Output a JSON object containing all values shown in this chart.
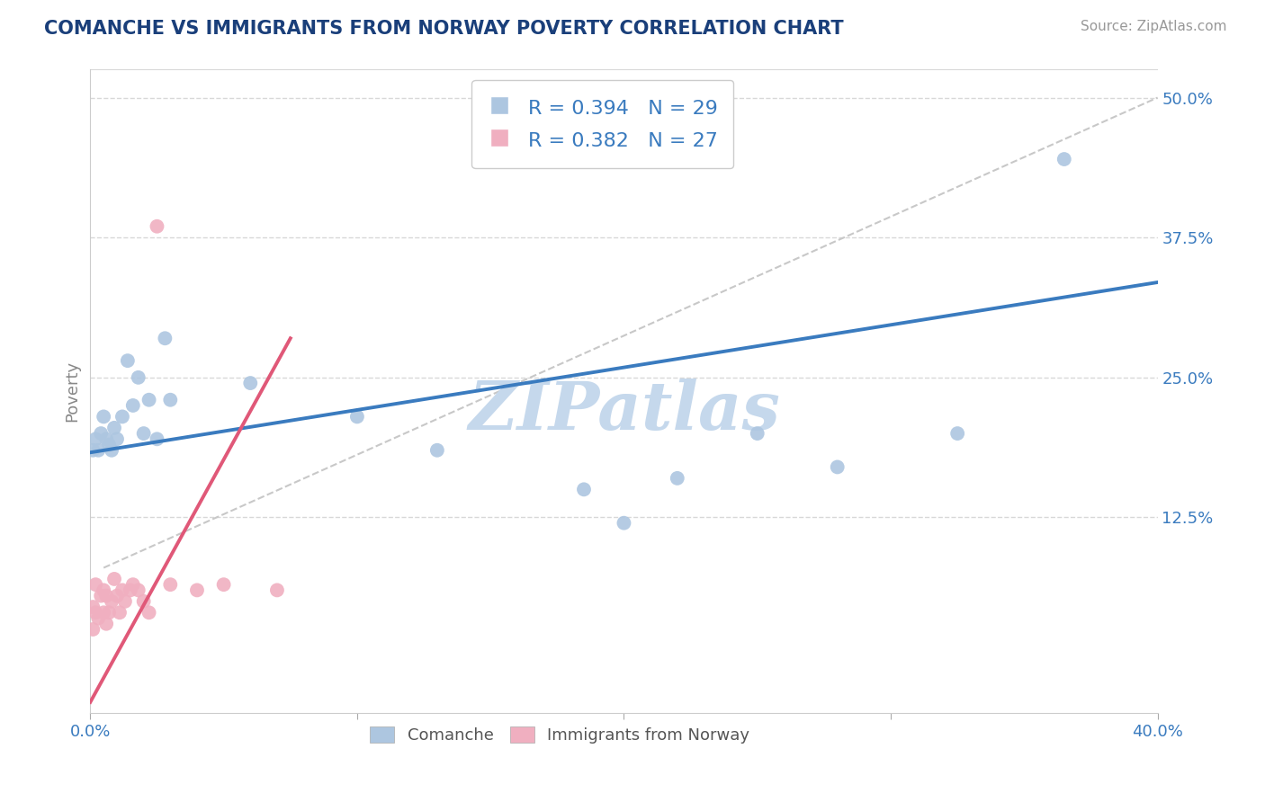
{
  "title": "COMANCHE VS IMMIGRANTS FROM NORWAY POVERTY CORRELATION CHART",
  "source": "Source: ZipAtlas.com",
  "ylabel": "Poverty",
  "xmin": 0.0,
  "xmax": 0.4,
  "ymin": -0.05,
  "ymax": 0.525,
  "r_comanche": 0.394,
  "n_comanche": 29,
  "r_norway": 0.382,
  "n_norway": 27,
  "comanche_color": "#adc6e0",
  "norway_color": "#f0afc0",
  "comanche_line_color": "#3a7bbf",
  "norway_line_color": "#e05878",
  "diagonal_color": "#c8c8c8",
  "watermark_color": "#c5d8ec",
  "title_color": "#1a3f7a",
  "axis_label_color": "#3a7bbf",
  "tick_color": "#888888",
  "background_color": "#ffffff",
  "grid_color": "#d8d8d8",
  "comanche_x": [
    0.001,
    0.002,
    0.003,
    0.004,
    0.005,
    0.006,
    0.007,
    0.008,
    0.009,
    0.01,
    0.012,
    0.014,
    0.016,
    0.018,
    0.02,
    0.022,
    0.025,
    0.028,
    0.03,
    0.06,
    0.1,
    0.13,
    0.185,
    0.2,
    0.22,
    0.25,
    0.28,
    0.325,
    0.365
  ],
  "comanche_y": [
    0.185,
    0.195,
    0.185,
    0.2,
    0.215,
    0.195,
    0.19,
    0.185,
    0.205,
    0.195,
    0.215,
    0.265,
    0.225,
    0.25,
    0.2,
    0.23,
    0.195,
    0.285,
    0.23,
    0.245,
    0.215,
    0.185,
    0.15,
    0.12,
    0.16,
    0.2,
    0.17,
    0.2,
    0.445
  ],
  "norway_x": [
    0.001,
    0.001,
    0.002,
    0.002,
    0.003,
    0.004,
    0.005,
    0.005,
    0.006,
    0.006,
    0.007,
    0.008,
    0.009,
    0.01,
    0.011,
    0.012,
    0.013,
    0.015,
    0.016,
    0.018,
    0.02,
    0.022,
    0.025,
    0.03,
    0.04,
    0.05,
    0.07
  ],
  "norway_y": [
    0.045,
    0.025,
    0.04,
    0.065,
    0.035,
    0.055,
    0.04,
    0.06,
    0.03,
    0.055,
    0.04,
    0.05,
    0.07,
    0.055,
    0.04,
    0.06,
    0.05,
    0.06,
    0.065,
    0.06,
    0.05,
    0.04,
    0.385,
    0.065,
    0.06,
    0.065,
    0.06
  ],
  "comanche_line_x": [
    0.0,
    0.4
  ],
  "comanche_line_y": [
    0.183,
    0.335
  ],
  "norway_line_x": [
    0.0,
    0.075
  ],
  "norway_line_y": [
    -0.04,
    0.285
  ],
  "diag_line_x": [
    0.005,
    0.4
  ],
  "diag_line_y": [
    0.08,
    0.5
  ]
}
